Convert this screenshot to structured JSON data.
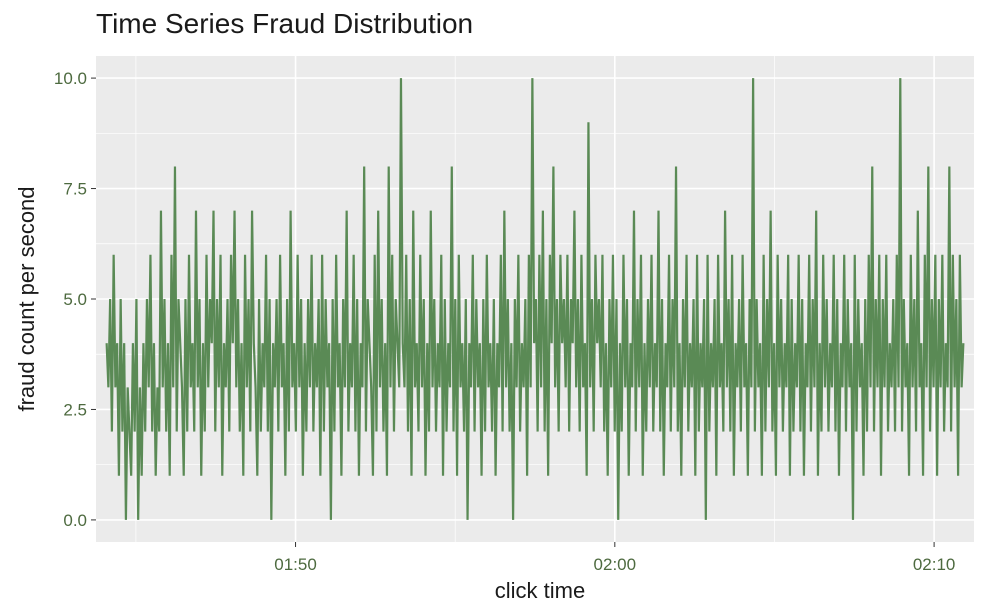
{
  "chart_data": {
    "type": "line",
    "title": "Time Series Fraud Distribution",
    "xlabel": "click time",
    "ylabel": "fraud count per second",
    "x_ticks": [
      "01:50",
      "02:00",
      "02:10"
    ],
    "y_ticks": [
      "0.0",
      "2.5",
      "5.0",
      "7.5",
      "10.0"
    ],
    "x_range": [
      "01:43:45",
      "02:11:15"
    ],
    "ylim": [
      -0.5,
      10.5
    ],
    "grid": true,
    "legend": "none",
    "colors": {
      "panel": "#ebebeb",
      "grid": "#ffffff",
      "line": "#5a8a55"
    },
    "series": [
      {
        "x_start": "01:44:05",
        "x_end": "02:10:55",
        "points_per_minute": 60,
        "values": [
          4,
          3,
          5,
          2,
          6,
          3,
          4,
          1,
          5,
          2,
          4,
          0,
          3,
          2,
          1,
          4,
          2,
          5,
          0,
          3,
          1,
          4,
          2,
          5,
          3,
          6,
          2,
          4,
          1,
          3,
          2,
          7,
          3,
          5,
          2,
          4,
          1,
          6,
          3,
          8,
          2,
          5,
          4,
          3,
          1,
          5,
          2,
          6,
          3,
          4,
          2,
          7,
          3,
          5,
          1,
          4,
          2,
          6,
          3,
          5,
          4,
          7,
          2,
          5,
          3,
          6,
          1,
          4,
          3,
          5,
          2,
          6,
          4,
          7,
          3,
          5,
          2,
          4,
          1,
          6,
          3,
          5,
          2,
          7,
          4,
          3,
          1,
          5,
          2,
          4,
          3,
          6,
          2,
          5,
          0,
          4,
          3,
          5,
          2,
          6,
          3,
          4,
          1,
          5,
          2,
          7,
          3,
          4,
          2,
          6,
          3,
          5,
          1,
          4,
          2,
          5,
          3,
          6,
          2,
          4,
          3,
          5,
          1,
          6,
          2,
          5,
          3,
          4,
          0,
          5,
          2,
          6,
          3,
          4,
          1,
          5,
          3,
          7,
          2,
          4,
          3,
          6,
          2,
          5,
          1,
          4,
          3,
          8,
          2,
          5,
          4,
          3,
          1,
          6,
          2,
          7,
          3,
          5,
          2,
          4,
          1,
          8,
          3,
          6,
          2,
          5,
          4,
          3,
          10,
          4,
          3,
          6,
          2,
          5,
          1,
          7,
          3,
          4,
          2,
          6,
          3,
          5,
          1,
          4,
          2,
          7,
          3,
          5,
          2,
          4,
          3,
          6,
          1,
          5,
          2,
          4,
          3,
          8,
          2,
          5,
          1,
          6,
          3,
          4,
          2,
          5,
          0,
          4,
          3,
          6,
          2,
          5,
          3,
          4,
          1,
          5,
          2,
          6,
          3,
          4,
          2,
          5,
          1,
          4,
          3,
          6,
          2,
          7,
          3,
          5,
          2,
          4,
          0,
          5,
          3,
          6,
          2,
          4,
          3,
          5,
          1,
          6,
          3,
          10,
          4,
          5,
          2,
          6,
          3,
          7,
          2,
          5,
          1,
          6,
          4,
          8,
          3,
          5,
          2,
          6,
          4,
          5,
          3,
          6,
          2,
          5,
          4,
          7,
          3,
          5,
          2,
          6,
          3,
          4,
          1,
          9,
          3,
          5,
          2,
          6,
          4,
          5,
          3,
          6,
          2,
          4,
          1,
          5,
          3,
          6,
          2,
          5,
          0,
          4,
          2,
          6,
          3,
          5,
          1,
          4,
          3,
          7,
          2,
          5,
          3,
          6,
          1,
          4,
          2,
          5,
          3,
          6,
          2,
          4,
          3,
          7,
          2,
          5,
          1,
          4,
          3,
          6,
          2,
          5,
          3,
          8,
          2,
          4,
          1,
          5,
          3,
          6,
          2,
          4,
          3,
          5,
          1,
          6,
          2,
          4,
          3,
          5,
          0,
          6,
          2,
          4,
          3,
          5,
          1,
          6,
          3,
          4,
          2,
          7,
          3,
          5,
          2,
          6,
          1,
          4,
          3,
          5,
          2,
          6,
          3,
          4,
          1,
          5,
          3,
          10,
          2,
          5,
          3,
          4,
          1,
          6,
          2,
          5,
          3,
          7,
          2,
          4,
          1,
          6,
          3,
          5,
          2,
          4,
          3,
          6,
          1,
          5,
          2,
          4,
          3,
          6,
          2,
          5,
          1,
          4,
          3,
          6,
          2,
          5,
          3,
          7,
          1,
          4,
          2,
          6,
          3,
          5,
          2,
          4,
          3,
          6,
          2,
          5,
          1,
          4,
          3,
          6,
          2,
          5,
          3,
          4,
          0,
          6,
          2,
          5,
          3,
          4,
          1,
          5,
          2,
          6,
          3,
          8,
          2,
          5,
          3,
          6,
          1,
          5,
          3,
          6,
          2,
          4,
          3,
          5,
          2,
          6,
          3,
          10,
          2,
          5,
          3,
          4,
          1,
          6,
          3,
          5,
          2,
          7,
          3,
          4,
          1,
          6,
          3,
          8,
          2,
          5,
          3,
          6,
          1,
          5,
          3,
          6,
          2,
          4,
          3,
          8,
          2,
          6,
          3,
          5,
          1,
          6,
          3,
          4
        ]
      }
    ]
  }
}
